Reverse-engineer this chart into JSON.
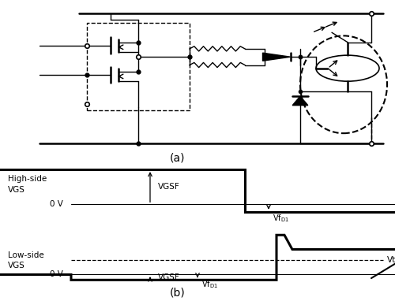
{
  "fig_width": 5.0,
  "fig_height": 3.82,
  "dpi": 100,
  "bg_color": "#ffffff",
  "label_a": "(a)",
  "label_b": "(b)",
  "hs_label1": "High-side",
  "hs_label2": "VGS",
  "hs_0v": "0 V",
  "ls_label1": "Low-side",
  "ls_label2": "VGS",
  "ls_0v": "0 V",
  "vgsf_label": "VGSF",
  "vfd1_label": "Vf₁",
  "vth_label": "Vth",
  "hs_high": 2.0,
  "hs_low": -0.4,
  "ls_high": 2.8,
  "ls_settle": 1.5,
  "ls_low": -0.4,
  "vth_level": 0.8
}
